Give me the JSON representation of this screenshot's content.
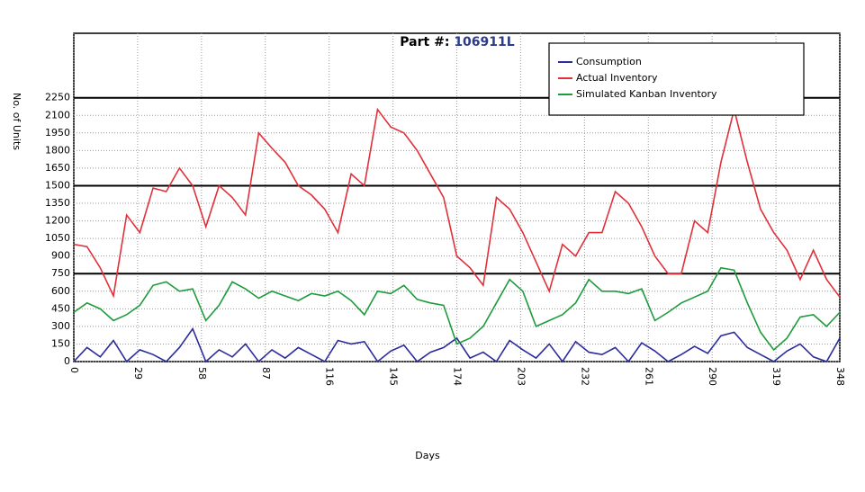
{
  "chart_data": {
    "type": "line",
    "title": "Part #:",
    "part_number": "106911L",
    "x_label": "Days",
    "y_label": "No. of Units",
    "xlim": [
      0,
      348
    ],
    "ylim": [
      0,
      2800
    ],
    "xticks": [
      0,
      29,
      58,
      87,
      116,
      145,
      174,
      203,
      232,
      261,
      290,
      319,
      348
    ],
    "yticks": [
      0,
      150,
      300,
      450,
      600,
      750,
      900,
      1050,
      1200,
      1350,
      1500,
      1650,
      1800,
      1950,
      2100,
      2250
    ],
    "reference_lines": [
      750,
      1500,
      2250
    ],
    "grid": true,
    "legend": "upper right",
    "x": [
      0,
      6,
      12,
      18,
      24,
      30,
      36,
      42,
      48,
      54,
      60,
      66,
      72,
      78,
      84,
      90,
      96,
      102,
      108,
      114,
      120,
      126,
      132,
      138,
      144,
      150,
      156,
      162,
      168,
      174,
      180,
      186,
      192,
      198,
      204,
      210,
      216,
      222,
      228,
      234,
      240,
      246,
      252,
      258,
      264,
      270,
      276,
      282,
      288,
      294,
      300,
      306,
      312,
      318,
      324,
      330,
      336,
      342,
      348
    ],
    "series": [
      {
        "name": "Consumption",
        "color": "#2b2b9c",
        "values": [
          0,
          120,
          40,
          180,
          0,
          100,
          60,
          0,
          120,
          280,
          0,
          100,
          40,
          150,
          0,
          100,
          30,
          120,
          60,
          0,
          180,
          150,
          170,
          0,
          90,
          140,
          0,
          80,
          120,
          200,
          30,
          80,
          0,
          180,
          100,
          30,
          150,
          0,
          170,
          80,
          60,
          120,
          0,
          160,
          90,
          0,
          60,
          130,
          70,
          220,
          250,
          120,
          60,
          0,
          90,
          150,
          40,
          0,
          200
        ]
      },
      {
        "name": "Actual Inventory",
        "color": "#e0303a",
        "values": [
          1000,
          980,
          800,
          560,
          1250,
          1100,
          1480,
          1450,
          1650,
          1500,
          1150,
          1500,
          1400,
          1250,
          1950,
          1820,
          1700,
          1500,
          1420,
          1300,
          1100,
          1600,
          1500,
          2150,
          2000,
          1950,
          1800,
          1600,
          1400,
          900,
          800,
          650,
          1400,
          1300,
          1100,
          850,
          600,
          1000,
          900,
          1100,
          1100,
          1450,
          1350,
          1150,
          900,
          750,
          750,
          1200,
          1100,
          1700,
          2150,
          1700,
          1300,
          1100,
          950,
          700,
          950,
          700,
          550
        ]
      },
      {
        "name": "Simulated Kanban Inventory",
        "color": "#1e9b3c",
        "values": [
          420,
          500,
          450,
          350,
          400,
          480,
          650,
          680,
          600,
          620,
          350,
          480,
          680,
          620,
          540,
          600,
          560,
          520,
          580,
          560,
          600,
          520,
          400,
          600,
          580,
          650,
          530,
          500,
          480,
          150,
          200,
          300,
          500,
          700,
          600,
          300,
          350,
          400,
          500,
          700,
          600,
          600,
          580,
          620,
          350,
          420,
          500,
          550,
          600,
          800,
          780,
          500,
          250,
          100,
          200,
          380,
          400,
          300,
          420
        ]
      }
    ]
  }
}
